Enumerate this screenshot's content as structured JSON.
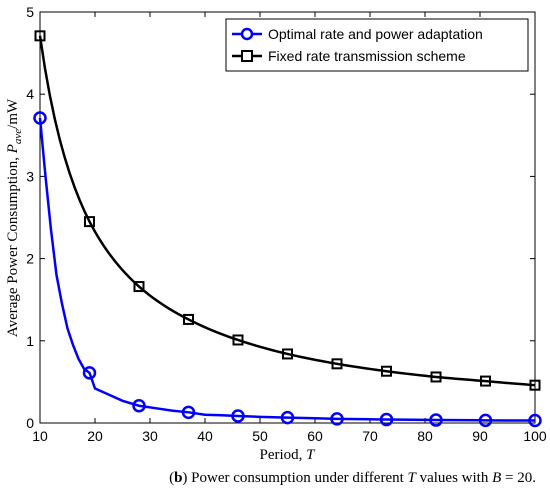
{
  "chart_data": {
    "type": "line",
    "xlabel": "Period, T",
    "ylabel": "Average Power Consumption, P_ave/mW",
    "xlim": [
      10,
      100
    ],
    "ylim": [
      0,
      5
    ],
    "xticks": [
      10,
      20,
      30,
      40,
      50,
      60,
      70,
      80,
      90,
      100
    ],
    "yticks": [
      0,
      1,
      2,
      3,
      4,
      5
    ],
    "grid": false,
    "legend_position": "top-right",
    "series": [
      {
        "name": "Optimal rate and power adaptation",
        "color": "#0000ff",
        "marker": "circle",
        "x": [
          10,
          11,
          12,
          13,
          14,
          15,
          16,
          17,
          18,
          19,
          20,
          22,
          25,
          28,
          31,
          34,
          37,
          40,
          43,
          46,
          50,
          55,
          60,
          64,
          70,
          73,
          80,
          82,
          90,
          91,
          100
        ],
        "values": [
          3.71,
          3.0,
          2.35,
          1.8,
          1.45,
          1.15,
          0.95,
          0.78,
          0.66,
          0.61,
          0.42,
          0.36,
          0.27,
          0.21,
          0.18,
          0.15,
          0.13,
          0.1,
          0.095,
          0.085,
          0.075,
          0.065,
          0.057,
          0.05,
          0.045,
          0.042,
          0.038,
          0.036,
          0.033,
          0.032,
          0.03
        ],
        "marker_x": [
          10,
          19,
          28,
          37,
          46,
          55,
          64,
          73,
          82,
          91,
          100
        ]
      },
      {
        "name": "Fixed rate transmission scheme",
        "color": "#000000",
        "marker": "square",
        "x": [
          10,
          19,
          28,
          37,
          46,
          55,
          64,
          73,
          82,
          91,
          100
        ],
        "values": [
          4.71,
          2.45,
          1.66,
          1.26,
          1.01,
          0.84,
          0.72,
          0.63,
          0.56,
          0.51,
          0.46
        ],
        "marker_x": [
          10,
          19,
          28,
          37,
          46,
          55,
          64,
          73,
          82,
          91,
          100
        ]
      }
    ]
  },
  "axis_labels": {
    "x_main": "Period, ",
    "x_var": "T",
    "y_main": "Average Power Consumption, ",
    "y_var": "P",
    "y_sub": "ave",
    "y_unit": "/mW"
  },
  "caption": {
    "label": "b",
    "text_before_var": " Power consumption under different ",
    "var1": "T",
    "text_mid": " values with ",
    "var2": "B",
    "text_end": " = 20."
  }
}
